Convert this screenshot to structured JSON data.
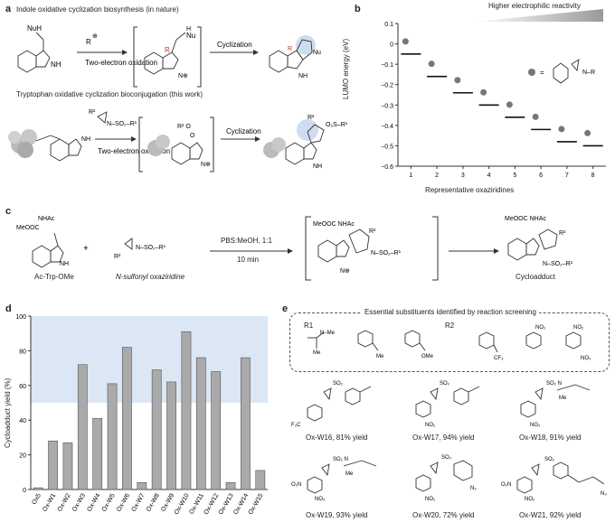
{
  "panel_a": {
    "label": "a",
    "title_top": "Indole oxidative cyclization biosynthesis (in nature)",
    "title_bottom": "Tryptophan oxidative cyclization bioconjugation (this work)",
    "arrow1_label": "Two-electron oxidation",
    "arrow2_label": "Cyclization",
    "arrow3_label": "Two-electron oxidation",
    "arrow4_label": "Cyclization",
    "txt_nuh": "NuH",
    "txt_nh": "NH",
    "txt_nu": "Nu",
    "txt_r": "R",
    "txt_h": "H"
  },
  "panel_b": {
    "label": "b",
    "gradient_label": "Higher electrophilic reactivity",
    "legend_eq": "="
  },
  "panel_c": {
    "label": "c",
    "reagent1": "Ac-Trp-OMe",
    "reagent2": "N-sulfonyl oxaziridine",
    "conditions1": "PBS:MeOH, 1:1",
    "conditions2": "10 min",
    "product": "Cycloadduct",
    "plus": "+",
    "txt_meooc": "MeOOC",
    "txt_nhac": "NHAc"
  },
  "panel_d": {
    "label": "d"
  },
  "panel_e": {
    "label": "e",
    "box_title": "Essential substituents identified by reaction screening",
    "r1_label": "R1",
    "r2_label": "R2",
    "compounds": [
      "Ox-W16, 81% yield",
      "Ox-W17, 94% yield",
      "Ox-W18, 91% yield",
      "Ox-W19, 93% yield",
      "Ox-W20, 72% yield",
      "Ox-W21, 92% yield"
    ]
  },
  "chart_data": [
    {
      "type": "scatter",
      "panel": "b",
      "title": "",
      "xlabel": "Representative oxaziridines",
      "ylabel": "LUMO energy (eV)",
      "x": [
        1,
        2,
        3,
        4,
        5,
        6,
        7,
        8
      ],
      "y": [
        -0.05,
        -0.16,
        -0.24,
        -0.3,
        -0.36,
        -0.42,
        -0.48,
        -0.5
      ],
      "xlim": [
        0.5,
        8.5
      ],
      "ylim": [
        -0.6,
        0.1
      ],
      "yticks": [
        "0.1",
        "0",
        "−0.1",
        "−0.2",
        "−0.3",
        "−0.4",
        "−0.5",
        "−0.6"
      ],
      "xticks": [
        "1",
        "2",
        "3",
        "4",
        "5",
        "6",
        "7",
        "8"
      ]
    },
    {
      "type": "bar",
      "panel": "d",
      "title": "",
      "xlabel": "",
      "ylabel": "Cycloadduct yield (%)",
      "categories": [
        "Ox5",
        "Ox-W1",
        "Ox-W2",
        "Ox-W3",
        "Ox-W4",
        "Ox-W5",
        "Ox-W6",
        "Ox-W7",
        "Ox-W8",
        "Ox-W9",
        "Ox-W10",
        "Ox-W11",
        "Ox-W12",
        "Ox-W13",
        "Ox-W14",
        "Ox-W15"
      ],
      "values": [
        1,
        28,
        27,
        72,
        41,
        61,
        82,
        4,
        69,
        62,
        91,
        76,
        68,
        4,
        76,
        11
      ],
      "ylim": [
        0,
        100
      ],
      "yticks": [
        "0",
        "20",
        "40",
        "60",
        "80",
        "100"
      ],
      "highlight_range": [
        50,
        100
      ],
      "colors": {
        "bar": "#aaaaaa",
        "highlight": "#dce7f5"
      }
    }
  ]
}
